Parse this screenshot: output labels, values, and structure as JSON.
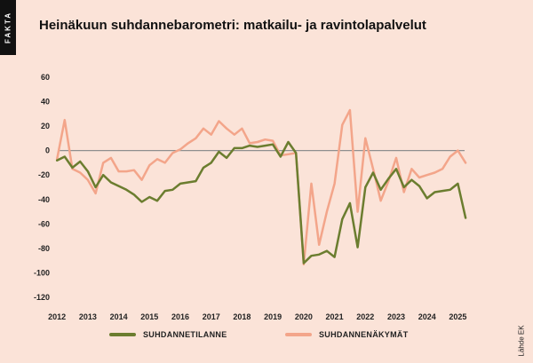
{
  "badge": "FAKTA",
  "source": "Lähde EK",
  "chart_data": {
    "type": "line",
    "title": "Heinäkuun suhdannebarometri: matkailu- ja ravintolapalvelut",
    "ylim": [
      -125,
      65
    ],
    "xlim": [
      2011.88,
      2025.42
    ],
    "yticks": [
      60,
      40,
      20,
      0,
      -20,
      -40,
      -60,
      -80,
      -100,
      -120
    ],
    "xticks": [
      "2012",
      "2013",
      "2014",
      "2015",
      "2016",
      "2017",
      "2018",
      "2019",
      "2020",
      "2021",
      "2022",
      "2023",
      "2024",
      "2025"
    ],
    "grid": false,
    "zero_line": true,
    "legend_position": "bottom",
    "series": [
      {
        "name": "SUHDANNETILANNE",
        "color": "#6b7d2f",
        "x": [
          2012.0,
          2012.25,
          2012.5,
          2012.75,
          2013.0,
          2013.25,
          2013.5,
          2013.75,
          2014.0,
          2014.25,
          2014.5,
          2014.75,
          2015.0,
          2015.25,
          2015.5,
          2015.75,
          2016.0,
          2016.25,
          2016.5,
          2016.75,
          2017.0,
          2017.25,
          2017.5,
          2017.75,
          2018.0,
          2018.25,
          2018.5,
          2018.75,
          2019.0,
          2019.25,
          2019.5,
          2019.75,
          2020.0,
          2020.25,
          2020.5,
          2020.75,
          2021.0,
          2021.25,
          2021.5,
          2021.75,
          2022.0,
          2022.25,
          2022.5,
          2022.75,
          2023.0,
          2023.25,
          2023.5,
          2023.75,
          2024.0,
          2024.25,
          2024.5,
          2024.75,
          2025.0,
          2025.25
        ],
        "y": [
          -8,
          -5,
          -14,
          -9,
          -17,
          -30,
          -20,
          -26,
          -29,
          -32,
          -36,
          -42,
          -38,
          -41,
          -33,
          -32,
          -27,
          -26,
          -25,
          -14,
          -10,
          -1,
          -6,
          2,
          2,
          4,
          3,
          4,
          5,
          -5,
          7,
          -2,
          -92,
          -86,
          -85,
          -82,
          -87,
          -56,
          -43,
          -79,
          -30,
          -18,
          -32,
          -23,
          -15,
          -30,
          -24,
          -29,
          -39,
          -34,
          -33,
          -32,
          -27,
          -55
        ]
      },
      {
        "name": "SUHDANNENÄKYMÄT",
        "color": "#f3a58a",
        "x": [
          2012.0,
          2012.25,
          2012.5,
          2012.75,
          2013.0,
          2013.25,
          2013.5,
          2013.75,
          2014.0,
          2014.25,
          2014.5,
          2014.75,
          2015.0,
          2015.25,
          2015.5,
          2015.75,
          2016.0,
          2016.25,
          2016.5,
          2016.75,
          2017.0,
          2017.25,
          2017.5,
          2017.75,
          2018.0,
          2018.25,
          2018.5,
          2018.75,
          2019.0,
          2019.25,
          2019.5,
          2019.75,
          2020.0,
          2020.25,
          2020.5,
          2020.75,
          2021.0,
          2021.25,
          2021.5,
          2021.75,
          2022.0,
          2022.25,
          2022.5,
          2022.75,
          2023.0,
          2023.25,
          2023.5,
          2023.75,
          2024.0,
          2024.25,
          2024.5,
          2024.75,
          2025.0,
          2025.25
        ],
        "y": [
          -7,
          25,
          -15,
          -18,
          -24,
          -35,
          -10,
          -6,
          -17,
          -17,
          -16,
          -24,
          -12,
          -7,
          -10,
          -2,
          1,
          6,
          10,
          18,
          13,
          24,
          18,
          13,
          18,
          6,
          7,
          9,
          8,
          -4,
          -3,
          -2,
          -93,
          -27,
          -77,
          -50,
          -27,
          21,
          33,
          -50,
          10,
          -15,
          -41,
          -25,
          -6,
          -34,
          -15,
          -22,
          -20,
          -18,
          -15,
          -5,
          0,
          -10
        ]
      }
    ]
  }
}
